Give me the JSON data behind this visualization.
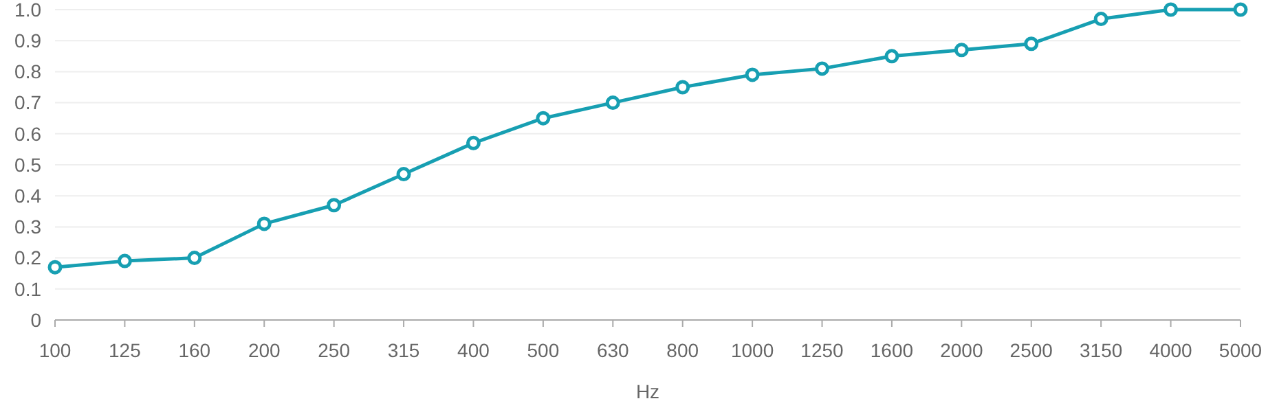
{
  "chart_data": {
    "type": "line",
    "xlabel": "Hz",
    "categories": [
      "100",
      "125",
      "160",
      "200",
      "250",
      "315",
      "400",
      "500",
      "630",
      "800",
      "1000",
      "1250",
      "1600",
      "2000",
      "2500",
      "3150",
      "4000",
      "5000"
    ],
    "series": [
      {
        "color": "#179fb2",
        "values": [
          0.17,
          0.19,
          0.2,
          0.31,
          0.37,
          0.47,
          0.57,
          0.65,
          0.7,
          0.75,
          0.79,
          0.81,
          0.85,
          0.87,
          0.89,
          0.97,
          1.0,
          1.0
        ]
      }
    ],
    "ylim": [
      0,
      1
    ],
    "yticks": [
      0,
      0.1,
      0.2,
      0.3,
      0.4,
      0.5,
      0.6,
      0.7,
      0.8,
      0.9,
      {
        "value": 1,
        "label": "1.0"
      }
    ],
    "grid": "y",
    "marker": "circle",
    "line_style": "solid"
  }
}
